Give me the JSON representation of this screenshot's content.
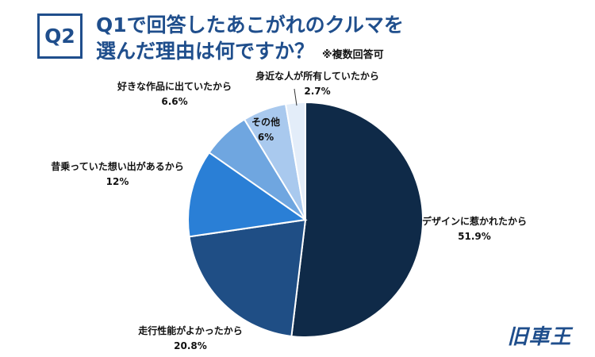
{
  "header": {
    "badge": "Q2",
    "line1": "Q1で回答したあこがれのクルマを",
    "line2": "選んだ理由は何ですか？",
    "note": "※複数回答可"
  },
  "logo": "旧車王",
  "colors": {
    "primary": "#1f4e8c",
    "slices": [
      "#0f2a48",
      "#1f4e85",
      "#2a7fd6",
      "#6fa6e0",
      "#a9c9ee",
      "#e3edf9"
    ]
  },
  "chart_data": {
    "type": "pie",
    "title": "",
    "slices": [
      {
        "label": "デザインに惹かれたから",
        "value": 51.9,
        "value_label": "51.9%"
      },
      {
        "label": "走行性能がよかったから",
        "value": 20.8,
        "value_label": "20.8%"
      },
      {
        "label": "昔乗っていた想い出があるから",
        "value": 12,
        "value_label": "12%"
      },
      {
        "label": "好きな作品に出ていたから",
        "value": 6.6,
        "value_label": "6.6%"
      },
      {
        "label": "その他",
        "value": 6,
        "value_label": "6%"
      },
      {
        "label": "身近な人が所有していたから",
        "value": 2.7,
        "value_label": "2.7%"
      }
    ]
  }
}
